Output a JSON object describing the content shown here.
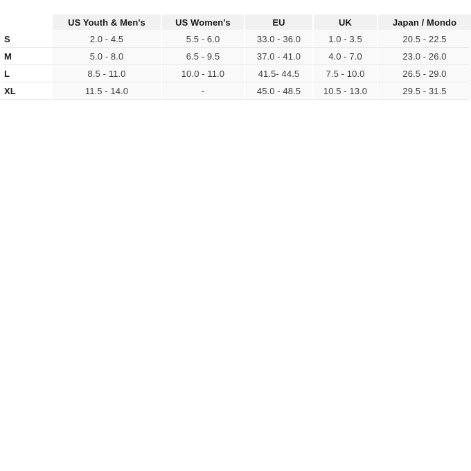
{
  "table": {
    "name": "shoe-size-conversion-chart",
    "columns": [
      "",
      "US Youth & Men's",
      "US Women's",
      "EU",
      "UK",
      "Japan / Mondo"
    ],
    "rows": [
      {
        "label": "S",
        "values": [
          "2.0 - 4.5",
          "5.5 - 6.0",
          "33.0 - 36.0",
          "1.0 - 3.5",
          "20.5 - 22.5"
        ]
      },
      {
        "label": "M",
        "values": [
          "5.0 - 8.0",
          "6.5 - 9.5",
          "37.0 - 41.0",
          "4.0 - 7.0",
          "23.0 - 26.0"
        ]
      },
      {
        "label": "L",
        "values": [
          "8.5 - 11.0",
          "10.0 - 11.0",
          "41.5- 44.5",
          "7.5 - 10.0",
          "26.5 - 29.0"
        ]
      },
      {
        "label": "XL",
        "values": [
          "11.5 - 14.0",
          "-",
          "45.0 - 48.5",
          "10.5 - 13.0",
          "29.5 - 31.5"
        ]
      }
    ],
    "colors": {
      "header_bg": "#f1f1f1",
      "row_bg": "#f9f9f9",
      "divider": "#e9e9e9",
      "header_text": "#1a1a1a",
      "value_text": "#3c3c3c"
    }
  }
}
